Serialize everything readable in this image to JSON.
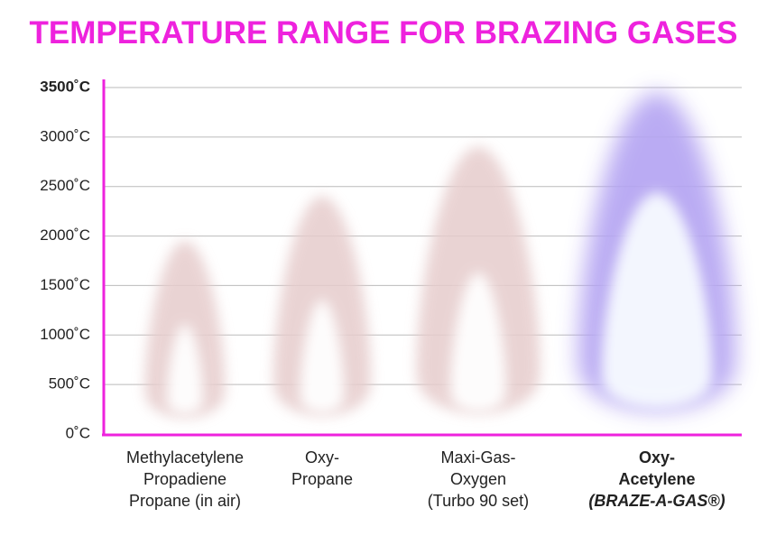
{
  "chart_data": {
    "type": "flame",
    "title": "TEMPERATURE RANGE FOR BRAZING GASES",
    "categories": [
      [
        "Methylacetylene",
        "Propadiene",
        "Propane (in air)"
      ],
      [
        "Oxy-",
        "Propane"
      ],
      [
        "Maxi-Gas-",
        "Oxygen",
        "(Turbo 90 set)"
      ],
      [
        "Oxy-",
        "Acetylene",
        "(BRAZE-A-GAS®)"
      ]
    ],
    "values": [
      1950,
      2400,
      2900,
      3450
    ],
    "colors": [
      "#e6cccc",
      "#e6cccc",
      "#e6cccc",
      "#b3a3f2"
    ],
    "ylim": [
      0,
      3500
    ],
    "yticks": [
      {
        "value": 0,
        "label": "0˚C"
      },
      {
        "value": 500,
        "label": "500˚C"
      },
      {
        "value": 1000,
        "label": "1000˚C"
      },
      {
        "value": 1500,
        "label": "1500˚C"
      },
      {
        "value": 2000,
        "label": "2000˚C"
      },
      {
        "value": 2500,
        "label": "2500˚C"
      },
      {
        "value": 3000,
        "label": "3000˚C"
      },
      {
        "value": 3500,
        "label": "3500˚C"
      }
    ],
    "grid": true
  }
}
